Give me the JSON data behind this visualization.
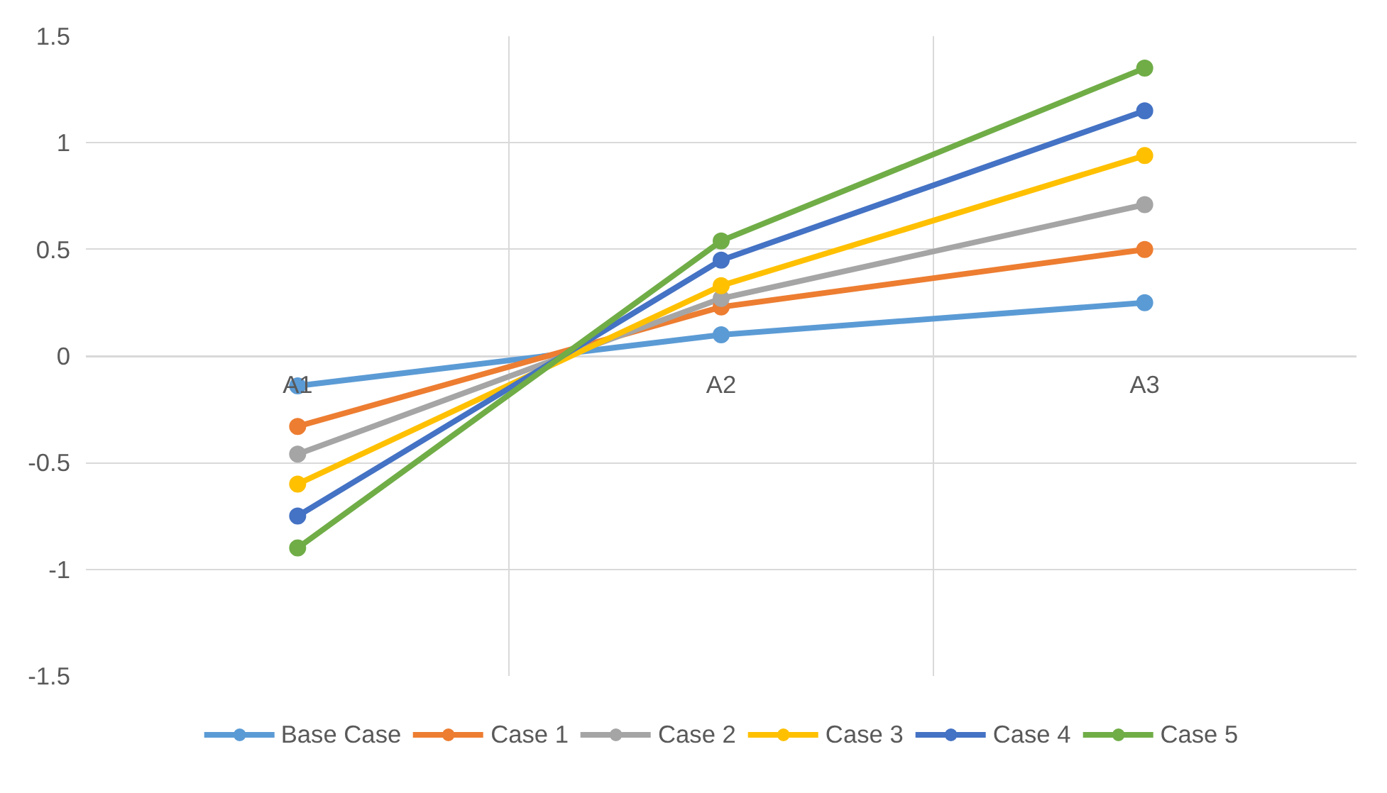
{
  "chart_data": {
    "type": "line",
    "categories": [
      "A1",
      "A2",
      "A3"
    ],
    "series": [
      {
        "name": "Base Case",
        "color": "#5b9bd5",
        "values": [
          -0.14,
          0.1,
          0.25
        ]
      },
      {
        "name": "Case 1",
        "color": "#ed7d31",
        "values": [
          -0.33,
          0.23,
          0.5
        ]
      },
      {
        "name": "Case 2",
        "color": "#a5a5a5",
        "values": [
          -0.46,
          0.27,
          0.71
        ]
      },
      {
        "name": "Case 3",
        "color": "#ffc000",
        "values": [
          -0.6,
          0.33,
          0.94
        ]
      },
      {
        "name": "Case 4",
        "color": "#4472c4",
        "values": [
          -0.75,
          0.45,
          1.15
        ]
      },
      {
        "name": "Case 5",
        "color": "#70ad47",
        "values": [
          -0.9,
          0.54,
          1.35
        ]
      }
    ],
    "ylim": [
      -1.5,
      1.5
    ],
    "yticks": [
      1.5,
      1,
      0.5,
      0,
      -0.5,
      -1,
      -1.5
    ],
    "grid": true,
    "legend": "bottom",
    "marker": "circle",
    "line_style": "solid"
  }
}
